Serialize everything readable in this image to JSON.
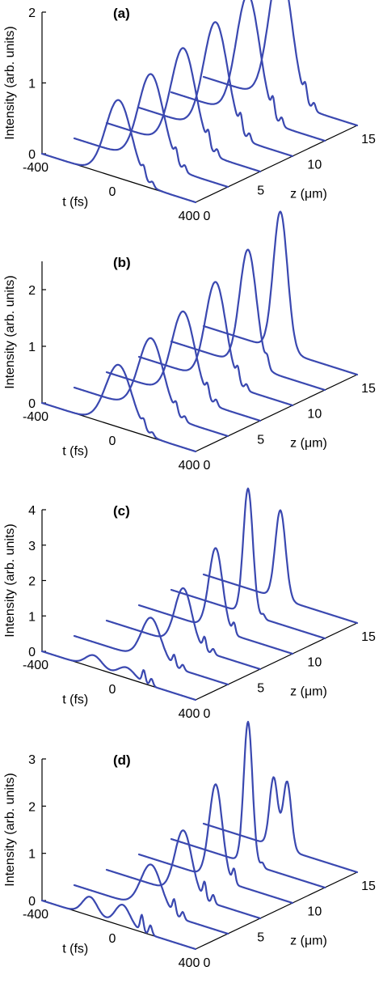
{
  "chart_data": [
    {
      "type": "line",
      "panel_label": "(a)",
      "ylabel": "Intensity (arb. units)",
      "t_label": "t (fs)",
      "z_label_prefix": "z (",
      "z_label_unit": "μm",
      "z_label_suffix": ")",
      "zlim": [
        0,
        2
      ],
      "ylim_ticks": [
        "0",
        "1",
        "2"
      ],
      "t_ticks": [
        "-400",
        "0",
        "400"
      ],
      "z_ticks": [
        "0",
        "5",
        "10",
        "15"
      ],
      "z_positions": [
        0,
        3,
        6,
        9,
        12,
        15
      ],
      "series": [
        {
          "z": 0,
          "pulses": [
            {
              "t": 0,
              "peak": 1.1,
              "width": 95
            }
          ],
          "ripples": [
            {
              "t": 130,
              "amp": 0.12
            },
            {
              "t": 175,
              "amp": 0.06
            }
          ]
        },
        {
          "z": 3,
          "pulses": [
            {
              "t": 0,
              "peak": 1.25,
              "width": 92
            }
          ],
          "ripples": [
            {
              "t": 130,
              "amp": 0.15
            },
            {
              "t": 175,
              "amp": 0.08
            }
          ]
        },
        {
          "z": 6,
          "pulses": [
            {
              "t": 0,
              "peak": 1.4,
              "width": 90
            }
          ],
          "ripples": [
            {
              "t": 130,
              "amp": 0.18
            },
            {
              "t": 175,
              "amp": 0.09
            }
          ]
        },
        {
          "z": 9,
          "pulses": [
            {
              "t": 0,
              "peak": 1.55,
              "width": 88
            }
          ],
          "ripples": [
            {
              "t": 130,
              "amp": 0.2
            },
            {
              "t": 175,
              "amp": 0.1
            }
          ]
        },
        {
          "z": 12,
          "pulses": [
            {
              "t": 0,
              "peak": 1.72,
              "width": 86
            }
          ],
          "ripples": [
            {
              "t": 130,
              "amp": 0.22
            },
            {
              "t": 175,
              "amp": 0.11
            }
          ]
        },
        {
          "z": 15,
          "pulses": [
            {
              "t": 0,
              "peak": 1.92,
              "width": 84
            }
          ],
          "ripples": [
            {
              "t": 130,
              "amp": 0.2
            },
            {
              "t": 175,
              "amp": 0.1
            }
          ]
        }
      ]
    },
    {
      "type": "line",
      "panel_label": "(b)",
      "ylabel": "Intensity (arb. units)",
      "t_label": "t (fs)",
      "z_label_prefix": "z (",
      "z_label_unit": "μm",
      "z_label_suffix": ")",
      "zlim": [
        0,
        2.5
      ],
      "ylim_ticks": [
        "0",
        "1",
        "2"
      ],
      "t_ticks": [
        "-400",
        "0",
        "400"
      ],
      "z_ticks": [
        "0",
        "5",
        "10",
        "15"
      ],
      "z_positions": [
        0,
        3,
        6,
        9,
        12,
        15
      ],
      "series": [
        {
          "z": 0,
          "pulses": [
            {
              "t": 0,
              "peak": 1.1,
              "width": 95
            }
          ],
          "ripples": [
            {
              "t": 130,
              "amp": 0.12
            },
            {
              "t": 175,
              "amp": 0.06
            }
          ]
        },
        {
          "z": 3,
          "pulses": [
            {
              "t": 0,
              "peak": 1.3,
              "width": 90
            }
          ],
          "ripples": [
            {
              "t": 130,
              "amp": 0.16
            },
            {
              "t": 175,
              "amp": 0.08
            }
          ]
        },
        {
          "z": 6,
          "pulses": [
            {
              "t": 0,
              "peak": 1.5,
              "width": 85
            }
          ],
          "ripples": [
            {
              "t": 125,
              "amp": 0.2
            },
            {
              "t": 170,
              "amp": 0.1
            }
          ]
        },
        {
          "z": 9,
          "pulses": [
            {
              "t": 0,
              "peak": 1.75,
              "width": 75
            }
          ],
          "ripples": [
            {
              "t": 115,
              "amp": 0.22
            },
            {
              "t": 160,
              "amp": 0.1
            }
          ]
        },
        {
          "z": 12,
          "pulses": [
            {
              "t": 0,
              "peak": 2.05,
              "width": 62
            }
          ],
          "ripples": [
            {
              "t": 100,
              "amp": 0.15
            }
          ]
        },
        {
          "z": 15,
          "pulses": [
            {
              "t": 0,
              "peak": 2.45,
              "width": 52
            }
          ],
          "ripples": []
        }
      ]
    },
    {
      "type": "line",
      "panel_label": "(c)",
      "ylabel": "Intensity (arb. units)",
      "t_label": "t (fs)",
      "z_label_prefix": "z (",
      "z_label_unit": "μm",
      "z_label_suffix": ")",
      "zlim": [
        0,
        4
      ],
      "ylim_ticks": [
        "0",
        "1",
        "2",
        "3",
        "4"
      ],
      "t_ticks": [
        "-400",
        "0",
        "400"
      ],
      "z_ticks": [
        "0",
        "5",
        "10",
        "15"
      ],
      "z_positions": [
        0,
        3,
        6,
        9,
        12,
        15
      ],
      "series": [
        {
          "z": 0,
          "pulses": [
            {
              "t": -130,
              "peak": 0.35,
              "width": 60
            },
            {
              "t": 40,
              "peak": 0.3,
              "width": 60
            }
          ],
          "ripples": [
            {
              "t": 130,
              "amp": 0.35
            },
            {
              "t": 170,
              "amp": 0.2
            }
          ]
        },
        {
          "z": 3,
          "pulses": [
            {
              "t": 0,
              "peak": 1.2,
              "width": 70
            }
          ],
          "ripples": [
            {
              "t": 120,
              "amp": 0.3
            },
            {
              "t": 165,
              "amp": 0.15
            }
          ]
        },
        {
          "z": 6,
          "pulses": [
            {
              "t": 0,
              "peak": 1.6,
              "width": 62
            }
          ],
          "ripples": [
            {
              "t": 110,
              "amp": 0.35
            },
            {
              "t": 155,
              "amp": 0.15
            }
          ]
        },
        {
          "z": 9,
          "pulses": [
            {
              "t": 0,
              "peak": 2.3,
              "width": 50
            }
          ],
          "ripples": [
            {
              "t": 95,
              "amp": 0.3
            }
          ]
        },
        {
          "z": 12,
          "pulses": [
            {
              "t": 0,
              "peak": 3.55,
              "width": 35
            }
          ],
          "ripples": [
            {
              "t": 80,
              "amp": 0.12
            }
          ]
        },
        {
          "z": 15,
          "pulses": [
            {
              "t": 0,
              "peak": 2.5,
              "width": 38
            }
          ],
          "ripples": []
        }
      ]
    },
    {
      "type": "line",
      "panel_label": "(d)",
      "ylabel": "Intensity (arb. units)",
      "t_label": "t (fs)",
      "z_label_prefix": "z (",
      "z_label_unit": "μm",
      "z_label_suffix": ")",
      "zlim": [
        0,
        3
      ],
      "ylim_ticks": [
        "0",
        "1",
        "2",
        "3"
      ],
      "t_ticks": [
        "-400",
        "0",
        "400"
      ],
      "z_ticks": [
        "0",
        "5",
        "10",
        "15"
      ],
      "z_positions": [
        0,
        3,
        6,
        9,
        12,
        15
      ],
      "series": [
        {
          "z": 0,
          "pulses": [
            {
              "t": -150,
              "peak": 0.4,
              "width": 55
            },
            {
              "t": 20,
              "peak": 0.45,
              "width": 55
            }
          ],
          "ripples": [
            {
              "t": 120,
              "amp": 0.35
            },
            {
              "t": 165,
              "amp": 0.2
            }
          ]
        },
        {
          "z": 3,
          "pulses": [
            {
              "t": 0,
              "peak": 0.95,
              "width": 75
            }
          ],
          "ripples": [
            {
              "t": 120,
              "amp": 0.3
            },
            {
              "t": 165,
              "amp": 0.15
            }
          ]
        },
        {
          "z": 6,
          "pulses": [
            {
              "t": 0,
              "peak": 1.35,
              "width": 62
            }
          ],
          "ripples": [
            {
              "t": 110,
              "amp": 0.35
            },
            {
              "t": 155,
              "amp": 0.18
            }
          ]
        },
        {
          "z": 9,
          "pulses": [
            {
              "t": 0,
              "peak": 2.0,
              "width": 48
            }
          ],
          "ripples": [
            {
              "t": 95,
              "amp": 0.3
            }
          ]
        },
        {
          "z": 12,
          "pulses": [
            {
              "t": 0,
              "peak": 3.0,
              "width": 32
            }
          ],
          "ripples": [
            {
              "t": 75,
              "amp": 0.1
            }
          ]
        },
        {
          "z": 15,
          "pulses": [
            {
              "t": -35,
              "peak": 1.45,
              "width": 30
            },
            {
              "t": 35,
              "peak": 1.45,
              "width": 30
            }
          ],
          "ripples": []
        }
      ]
    }
  ]
}
